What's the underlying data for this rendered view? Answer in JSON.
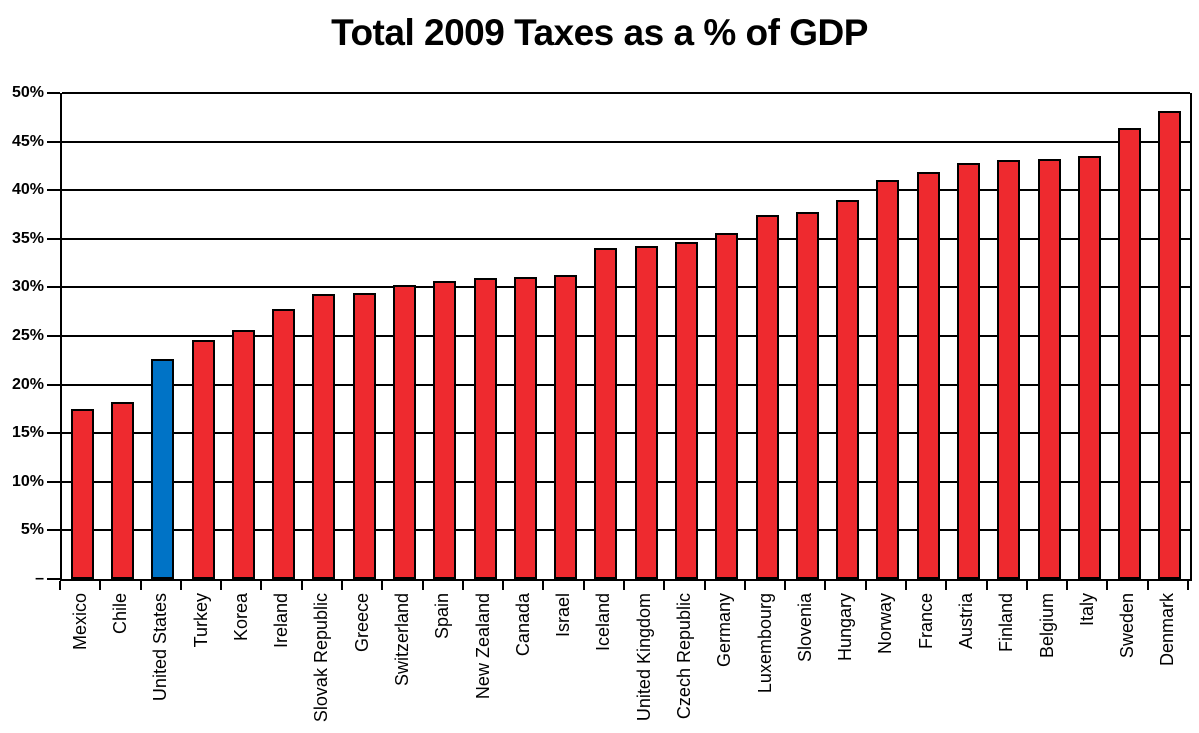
{
  "chart_data": {
    "type": "bar",
    "title": "Total 2009 Taxes as a % of GDP",
    "xlabel": "",
    "ylabel": "",
    "ylim": [
      0,
      50
    ],
    "ytick_step": 5,
    "grid": true,
    "legend": "none",
    "bar_color": "#EE2A2F",
    "highlight_color": "#0073C6",
    "bar_border_color": "#000000",
    "axis_color": "#000000",
    "highlight_category": "United States",
    "categories": [
      "Mexico",
      "Chile",
      "United States",
      "Turkey",
      "Korea",
      "Ireland",
      "Slovak Republic",
      "Greece",
      "Switzerland",
      "Spain",
      "New Zealand",
      "Canada",
      "Israel",
      "Iceland",
      "United Kingdom",
      "Czech Republic",
      "Germany",
      "Luxembourg",
      "Slovenia",
      "Hungary",
      "Norway",
      "France",
      "Austria",
      "Finland",
      "Belgium",
      "Italy",
      "Sweden",
      "Denmark"
    ],
    "values": [
      17.5,
      18.2,
      22.6,
      24.6,
      25.6,
      27.8,
      29.3,
      29.4,
      30.2,
      30.7,
      31.0,
      31.1,
      31.3,
      34.1,
      34.3,
      34.7,
      35.6,
      37.4,
      37.8,
      39.0,
      41.0,
      41.9,
      42.8,
      43.1,
      43.2,
      43.5,
      46.4,
      48.1
    ],
    "y_ticks": [
      {
        "v": 50,
        "label": "50%"
      },
      {
        "v": 45,
        "label": "45%"
      },
      {
        "v": 40,
        "label": "40%"
      },
      {
        "v": 35,
        "label": "35%"
      },
      {
        "v": 30,
        "label": "30%"
      },
      {
        "v": 25,
        "label": "25%"
      },
      {
        "v": 20,
        "label": "20%"
      },
      {
        "v": 15,
        "label": "15%"
      },
      {
        "v": 10,
        "label": "10%"
      },
      {
        "v": 5,
        "label": "5%"
      },
      {
        "v": 0,
        "label": "–"
      }
    ]
  }
}
